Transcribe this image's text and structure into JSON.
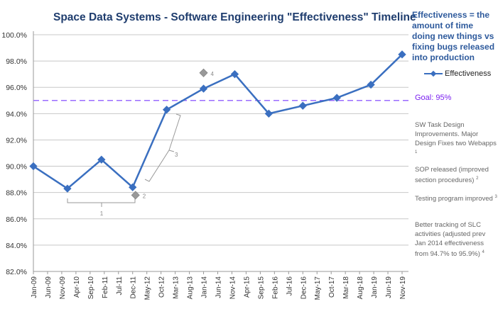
{
  "chart_data": {
    "type": "line",
    "title": "Space Data Systems - Software Engineering \"Effectiveness\" Timeline",
    "definition": "Effectiveness = the amount of time doing new things vs fixing bugs released into production",
    "xlabel": "",
    "ylabel": "",
    "x_tick_labels": [
      "Jan-09",
      "Jun-09",
      "Nov-09",
      "Apr-10",
      "Sep-10",
      "Feb-11",
      "Jul-11",
      "Dec-11",
      "May-12",
      "Oct-12",
      "Mar-13",
      "Aug-13",
      "Jan-14",
      "Jun-14",
      "Nov-14",
      "Apr-15",
      "Sep-15",
      "Feb-16",
      "Jul-16",
      "Dec-16",
      "May-17",
      "Oct-17",
      "Mar-18",
      "Aug-18",
      "Jan-19",
      "Jun-19",
      "Nov-19"
    ],
    "y_tick_labels": [
      "82.0%",
      "84.0%",
      "86.0%",
      "88.0%",
      "90.0%",
      "92.0%",
      "94.0%",
      "96.0%",
      "98.0%",
      "100.0%"
    ],
    "ylim": [
      82,
      100
    ],
    "grid": true,
    "legend_position": "right",
    "series": [
      {
        "name": "Effectiveness",
        "color": "#3a6fc0",
        "x": [
          "Jan-09",
          "Jan-10",
          "Jan-11",
          "Dec-11",
          "Dec-12",
          "Jan-14",
          "Dec-14",
          "Dec-15",
          "Dec-16",
          "Dec-17",
          "Dec-18",
          "Nov-19"
        ],
        "values": [
          90.0,
          88.3,
          90.5,
          88.4,
          94.3,
          95.9,
          97.0,
          94.0,
          94.6,
          95.2,
          96.2,
          98.5
        ]
      }
    ],
    "extra_points": [
      {
        "x": "Jan-12",
        "value": 87.8,
        "label": "2",
        "color": "#999999"
      },
      {
        "x": "Jan-14",
        "value": 97.1,
        "label": "4",
        "color": "#999999"
      }
    ],
    "goal": {
      "value": 95,
      "label": "Goal: 95%",
      "color": "#9a6bff"
    },
    "bracket_labels": [
      "1",
      "3"
    ],
    "notes": [
      {
        "text": "SW Task Design Improvements.  Major Design Fixes two Webapps",
        "ref": "1"
      },
      {
        "text": "SOP released (improved section procedures)",
        "ref": "2"
      },
      {
        "text": "Testing program improved",
        "ref": "3"
      },
      {
        "text": "Better  tracking of SLC activities (adjusted prev Jan 2014 effectiveness from  94.7% to 95.9%)",
        "ref": "4"
      }
    ]
  }
}
